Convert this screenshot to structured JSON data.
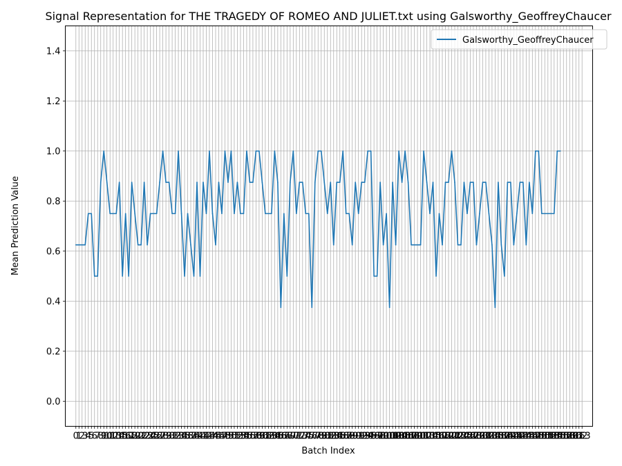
{
  "chart_data": {
    "type": "line",
    "title": "Signal Representation for THE TRAGEDY OF ROMEO AND JULIET.txt using Galsworthy_GeoffreyChaucer",
    "xlabel": "Batch Index",
    "ylabel": "Mean Prediction Value",
    "ylim": [
      -0.1,
      1.5
    ],
    "xlim": [
      -3.4,
      166.4
    ],
    "yticks": [
      0.0,
      0.2,
      0.4,
      0.6,
      0.8,
      1.0,
      1.2,
      1.4
    ],
    "ytick_labels": [
      "0.0",
      "0.2",
      "0.4",
      "0.6",
      "0.8",
      "1.0",
      "1.2",
      "1.4"
    ],
    "x_tick_count": 164,
    "grid": true,
    "legend_position": "upper right",
    "colors": {
      "series": "#1f77b4",
      "grid": "#b0b0b0"
    },
    "series": [
      {
        "name": "Galsworthy_GeoffreyChaucer",
        "x_start": 0,
        "values": [
          0.625,
          0.625,
          0.625,
          0.625,
          0.75,
          0.75,
          0.5,
          0.5,
          0.875,
          1.0,
          0.875,
          0.75,
          0.75,
          0.75,
          0.875,
          0.5,
          0.75,
          0.5,
          0.875,
          0.75,
          0.625,
          0.625,
          0.875,
          0.625,
          0.75,
          0.75,
          0.75,
          0.875,
          1.0,
          0.875,
          0.875,
          0.75,
          0.75,
          1.0,
          0.75,
          0.5,
          0.75,
          0.625,
          0.5,
          0.875,
          0.5,
          0.875,
          0.75,
          1.0,
          0.75,
          0.625,
          0.875,
          0.75,
          1.0,
          0.875,
          1.0,
          0.75,
          0.875,
          0.75,
          0.75,
          1.0,
          0.875,
          0.875,
          1.0,
          1.0,
          0.875,
          0.75,
          0.75,
          0.75,
          1.0,
          0.875,
          0.375,
          0.75,
          0.5,
          0.875,
          1.0,
          0.75,
          0.875,
          0.875,
          0.75,
          0.75,
          0.375,
          0.875,
          1.0,
          1.0,
          0.875,
          0.75,
          0.875,
          0.625,
          0.875,
          0.875,
          1.0,
          0.75,
          0.75,
          0.625,
          0.875,
          0.75,
          0.875,
          0.875,
          1.0,
          1.0,
          0.5,
          0.5,
          0.875,
          0.625,
          0.75,
          0.375,
          0.875,
          0.625,
          1.0,
          0.875,
          1.0,
          0.875,
          0.625,
          0.625,
          0.625,
          0.625,
          1.0,
          0.875,
          0.75,
          0.875,
          0.5,
          0.75,
          0.625,
          0.875,
          0.875,
          1.0,
          0.875,
          0.625,
          0.625,
          0.875,
          0.75,
          0.875,
          0.875,
          0.625,
          0.75,
          0.875,
          0.875,
          0.75,
          0.625,
          0.375,
          0.875,
          0.625,
          0.5,
          0.875,
          0.875,
          0.625,
          0.75,
          0.875,
          0.875,
          0.625,
          0.875,
          0.75,
          1.0,
          1.0,
          0.75,
          0.75,
          0.75,
          0.75,
          0.75,
          1.0,
          1.0
        ]
      }
    ]
  }
}
